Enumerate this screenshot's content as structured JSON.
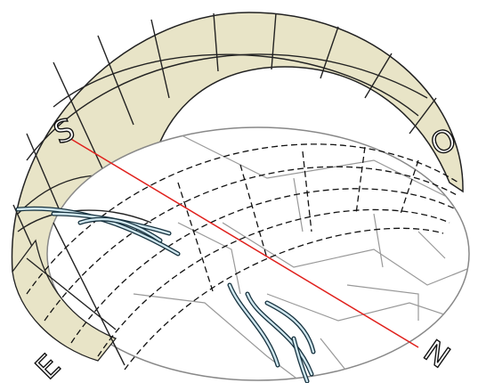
{
  "compass": {
    "south": "S",
    "west": "O",
    "north": "N",
    "east": "E"
  }
}
